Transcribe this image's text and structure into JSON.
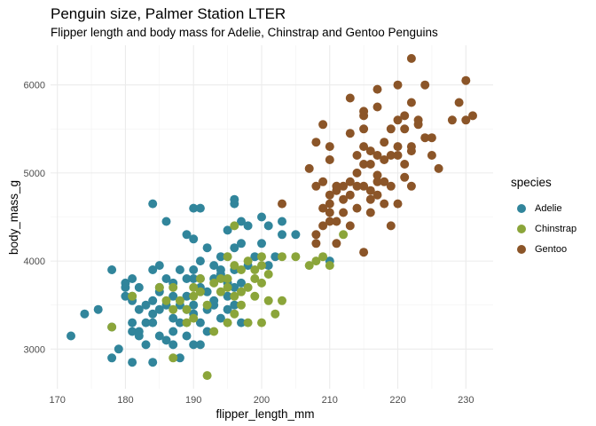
{
  "chart_data": {
    "type": "scatter",
    "title": "Penguin size, Palmer Station LTER",
    "subtitle": "Flipper length and body mass for Adelie, Chinstrap and Gentoo Penguins",
    "xlabel": "flipper_length_mm",
    "ylabel": "body_mass_g",
    "xlim": [
      169,
      234
    ],
    "ylim": [
      2550,
      6450
    ],
    "x_ticks": [
      170,
      180,
      190,
      200,
      210,
      220,
      230
    ],
    "y_ticks": [
      3000,
      4000,
      5000,
      6000
    ],
    "grid": true,
    "legend": {
      "title": "species",
      "placement": "right"
    },
    "series": [
      {
        "name": "Adelie",
        "color": "#31859B",
        "points": [
          [
            172,
            3150
          ],
          [
            174,
            3400
          ],
          [
            176,
            3450
          ],
          [
            178,
            3250
          ],
          [
            178,
            3900
          ],
          [
            178,
            2900
          ],
          [
            179,
            3000
          ],
          [
            180,
            3700
          ],
          [
            180,
            3600
          ],
          [
            180,
            3750
          ],
          [
            181,
            2850
          ],
          [
            181,
            3550
          ],
          [
            181,
            3300
          ],
          [
            181,
            3200
          ],
          [
            181,
            3600
          ],
          [
            181,
            3800
          ],
          [
            182,
            3200
          ],
          [
            182,
            3700
          ],
          [
            182,
            3450
          ],
          [
            182,
            3150
          ],
          [
            183,
            3050
          ],
          [
            183,
            3300
          ],
          [
            183,
            3500
          ],
          [
            184,
            4650
          ],
          [
            184,
            3900
          ],
          [
            184,
            3550
          ],
          [
            184,
            3400
          ],
          [
            184,
            3300
          ],
          [
            184,
            2850
          ],
          [
            185,
            3950
          ],
          [
            185,
            3650
          ],
          [
            185,
            3450
          ],
          [
            185,
            3150
          ],
          [
            185,
            3700
          ],
          [
            186,
            3800
          ],
          [
            186,
            3500
          ],
          [
            186,
            3100
          ],
          [
            186,
            4450
          ],
          [
            187,
            3350
          ],
          [
            187,
            3200
          ],
          [
            187,
            3600
          ],
          [
            187,
            3050
          ],
          [
            187,
            3750
          ],
          [
            188,
            3900
          ],
          [
            188,
            3300
          ],
          [
            188,
            3500
          ],
          [
            188,
            2900
          ],
          [
            189,
            4300
          ],
          [
            189,
            3600
          ],
          [
            189,
            3150
          ],
          [
            189,
            3800
          ],
          [
            189,
            3450
          ],
          [
            190,
            3400
          ],
          [
            190,
            3800
          ],
          [
            190,
            3900
          ],
          [
            190,
            4600
          ],
          [
            190,
            3500
          ],
          [
            190,
            3050
          ],
          [
            190,
            4250
          ],
          [
            191,
            3800
          ],
          [
            191,
            3300
          ],
          [
            191,
            4000
          ],
          [
            191,
            3700
          ],
          [
            191,
            3050
          ],
          [
            191,
            4600
          ],
          [
            192,
            3450
          ],
          [
            192,
            3650
          ],
          [
            192,
            3200
          ],
          [
            192,
            4150
          ],
          [
            193,
            3500
          ],
          [
            193,
            3950
          ],
          [
            193,
            3550
          ],
          [
            193,
            3800
          ],
          [
            194,
            4050
          ],
          [
            194,
            3850
          ],
          [
            194,
            3350
          ],
          [
            194,
            3900
          ],
          [
            195,
            3600
          ],
          [
            195,
            4350
          ],
          [
            195,
            3450
          ],
          [
            195,
            3750
          ],
          [
            196,
            4650
          ],
          [
            196,
            4150
          ],
          [
            196,
            3500
          ],
          [
            196,
            3900
          ],
          [
            196,
            4700
          ],
          [
            196,
            3700
          ],
          [
            197,
            3750
          ],
          [
            197,
            4200
          ],
          [
            197,
            3300
          ],
          [
            197,
            4450
          ],
          [
            198,
            3950
          ],
          [
            198,
            4400
          ],
          [
            199,
            4050
          ],
          [
            200,
            4200
          ],
          [
            200,
            4500
          ],
          [
            201,
            3950
          ],
          [
            201,
            4400
          ],
          [
            202,
            4050
          ],
          [
            203,
            4300
          ],
          [
            203,
            4450
          ],
          [
            205,
            4300
          ],
          [
            210,
            4000
          ]
        ]
      },
      {
        "name": "Chinstrap",
        "color": "#8BA53A",
        "points": [
          [
            178,
            3250
          ],
          [
            181,
            3600
          ],
          [
            185,
            3700
          ],
          [
            186,
            3550
          ],
          [
            187,
            2900
          ],
          [
            187,
            3450
          ],
          [
            187,
            3700
          ],
          [
            188,
            3550
          ],
          [
            189,
            3300
          ],
          [
            189,
            3450
          ],
          [
            190,
            3700
          ],
          [
            190,
            3600
          ],
          [
            190,
            3350
          ],
          [
            191,
            3650
          ],
          [
            191,
            3800
          ],
          [
            192,
            2700
          ],
          [
            192,
            3500
          ],
          [
            193,
            3750
          ],
          [
            193,
            3200
          ],
          [
            194,
            3650
          ],
          [
            194,
            3800
          ],
          [
            195,
            3800
          ],
          [
            195,
            3700
          ],
          [
            195,
            3300
          ],
          [
            195,
            4050
          ],
          [
            196,
            3600
          ],
          [
            196,
            3400
          ],
          [
            196,
            3950
          ],
          [
            196,
            4400
          ],
          [
            197,
            3900
          ],
          [
            197,
            3500
          ],
          [
            197,
            3650
          ],
          [
            198,
            3700
          ],
          [
            198,
            3300
          ],
          [
            198,
            4000
          ],
          [
            199,
            3600
          ],
          [
            199,
            3900
          ],
          [
            199,
            3800
          ],
          [
            200,
            3750
          ],
          [
            200,
            3950
          ],
          [
            200,
            3300
          ],
          [
            200,
            4050
          ],
          [
            201,
            3550
          ],
          [
            201,
            3850
          ],
          [
            202,
            3400
          ],
          [
            203,
            3550
          ],
          [
            203,
            4050
          ],
          [
            205,
            4050
          ],
          [
            207,
            3950
          ],
          [
            208,
            4000
          ],
          [
            209,
            4050
          ],
          [
            210,
            3950
          ],
          [
            212,
            4300
          ]
        ]
      },
      {
        "name": "Gentoo",
        "color": "#8B5528",
        "points": [
          [
            203,
            4650
          ],
          [
            207,
            5050
          ],
          [
            208,
            4200
          ],
          [
            208,
            4300
          ],
          [
            208,
            4850
          ],
          [
            208,
            5350
          ],
          [
            209,
            4600
          ],
          [
            209,
            5550
          ],
          [
            209,
            4900
          ],
          [
            209,
            4400
          ],
          [
            210,
            4650
          ],
          [
            210,
            4750
          ],
          [
            210,
            4450
          ],
          [
            210,
            5150
          ],
          [
            210,
            5300
          ],
          [
            210,
            4550
          ],
          [
            211,
            4800
          ],
          [
            211,
            4450
          ],
          [
            211,
            4850
          ],
          [
            211,
            4200
          ],
          [
            212,
            4700
          ],
          [
            212,
            4850
          ],
          [
            212,
            4550
          ],
          [
            213,
            4400
          ],
          [
            213,
            4750
          ],
          [
            213,
            5850
          ],
          [
            213,
            5450
          ],
          [
            213,
            4900
          ],
          [
            214,
            4850
          ],
          [
            214,
            5000
          ],
          [
            214,
            5200
          ],
          [
            214,
            4600
          ],
          [
            215,
            5100
          ],
          [
            215,
            4100
          ],
          [
            215,
            5300
          ],
          [
            215,
            5650
          ],
          [
            215,
            5500
          ],
          [
            215,
            4850
          ],
          [
            215,
            5700
          ],
          [
            216,
            4800
          ],
          [
            216,
            4550
          ],
          [
            216,
            5100
          ],
          [
            216,
            5250
          ],
          [
            216,
            4700
          ],
          [
            217,
            4900
          ],
          [
            217,
            4750
          ],
          [
            217,
            5200
          ],
          [
            217,
            4975
          ],
          [
            217,
            5750
          ],
          [
            217,
            5950
          ],
          [
            218,
            5150
          ],
          [
            218,
            4900
          ],
          [
            218,
            5350
          ],
          [
            218,
            4650
          ],
          [
            219,
            4850
          ],
          [
            219,
            5200
          ],
          [
            219,
            5500
          ],
          [
            219,
            4400
          ],
          [
            220,
            5300
          ],
          [
            220,
            5600
          ],
          [
            220,
            5200
          ],
          [
            220,
            4650
          ],
          [
            220,
            6000
          ],
          [
            221,
            5650
          ],
          [
            221,
            5100
          ],
          [
            221,
            5500
          ],
          [
            221,
            4950
          ],
          [
            222,
            6300
          ],
          [
            222,
            5300
          ],
          [
            222,
            5800
          ],
          [
            222,
            4850
          ],
          [
            222,
            5250
          ],
          [
            223,
            5550
          ],
          [
            223,
            5600
          ],
          [
            224,
            5400
          ],
          [
            224,
            6000
          ],
          [
            225,
            5200
          ],
          [
            225,
            5400
          ],
          [
            226,
            5050
          ],
          [
            228,
            5600
          ],
          [
            229,
            5800
          ],
          [
            230,
            5600
          ],
          [
            230,
            6050
          ],
          [
            231,
            5650
          ]
        ]
      }
    ]
  }
}
